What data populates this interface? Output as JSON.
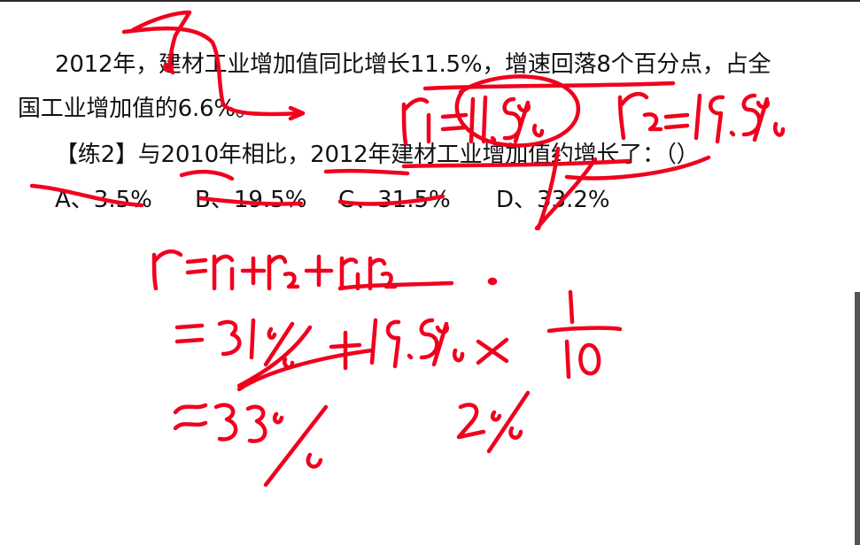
{
  "slide": {
    "paragraph_line1": "2012年，建材工业增加值同比增长11.5%，增速回落8个百分点，占全",
    "paragraph_line2": "国工业增加值的6.6%。",
    "question": "【练2】与2010年相比，2012年建材工业增加值约增长了：（）",
    "options": [
      {
        "label": "A、3.5%"
      },
      {
        "label": "B、19.5%"
      },
      {
        "label": "C、31.5%"
      },
      {
        "label": "D、33.2%"
      }
    ]
  },
  "colors": {
    "ink": "#f0001d",
    "text": "#111111",
    "background": "#ffffff"
  }
}
